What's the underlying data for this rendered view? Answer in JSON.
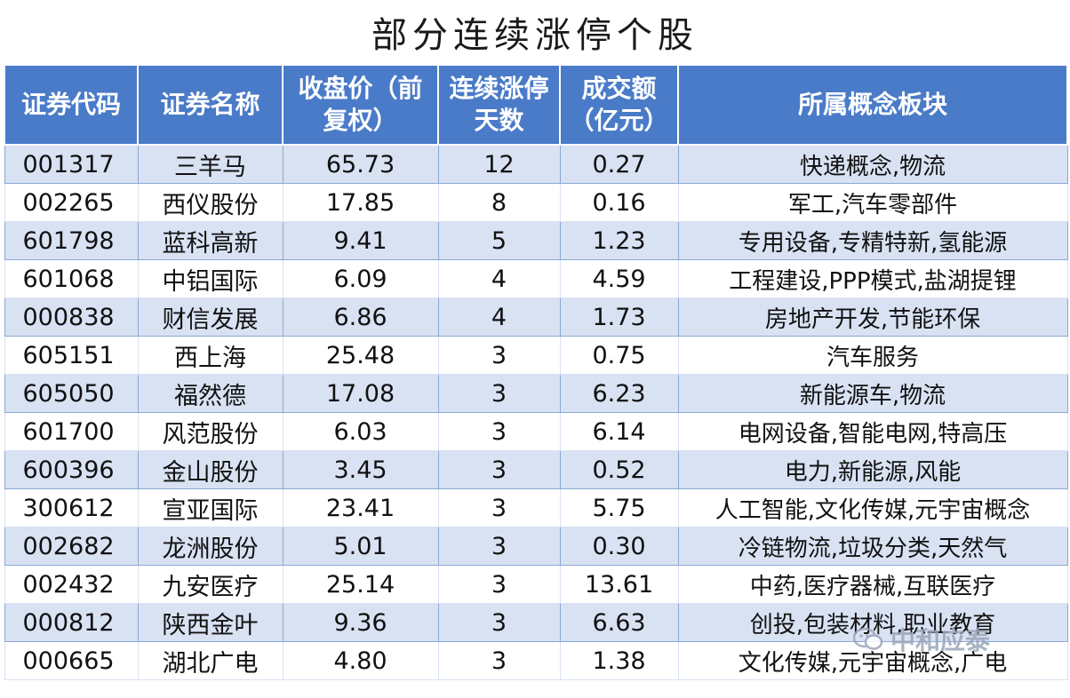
{
  "title": "部分连续涨停个股",
  "headers": [
    [
      "证券代码"
    ],
    [
      "证券名称"
    ],
    [
      "收盘价（前",
      "复权）"
    ],
    [
      "连续涨停",
      "天数"
    ],
    [
      "成交额",
      "（亿元）"
    ],
    [
      "所属概念板块"
    ]
  ],
  "rows": [
    [
      "001317",
      "三羊马",
      "65.73",
      "12",
      "0.27",
      "快递概念,物流"
    ],
    [
      "002265",
      "西仪股份",
      "17.85",
      "8",
      "0.16",
      "军工,汽车零部件"
    ],
    [
      "601798",
      "蓝科高新",
      "9.41",
      "5",
      "1.23",
      "专用设备,专精特新,氢能源"
    ],
    [
      "601068",
      "中铝国际",
      "6.09",
      "4",
      "4.59",
      "工程建设,PPP模式,盐湖提锂"
    ],
    [
      "000838",
      "财信发展",
      "6.86",
      "4",
      "1.73",
      "房地产开发,节能环保"
    ],
    [
      "605151",
      "西上海",
      "25.48",
      "3",
      "0.75",
      "汽车服务"
    ],
    [
      "605050",
      "福然德",
      "17.08",
      "3",
      "6.23",
      "新能源车,物流"
    ],
    [
      "601700",
      "风范股份",
      "6.03",
      "3",
      "6.14",
      "电网设备,智能电网,特高压"
    ],
    [
      "600396",
      "金山股份",
      "3.45",
      "3",
      "0.52",
      "电力,新能源,风能"
    ],
    [
      "300612",
      "宣亚国际",
      "23.41",
      "3",
      "5.75",
      "人工智能,文化传媒,元宇宙概念"
    ],
    [
      "002682",
      "龙洲股份",
      "5.01",
      "3",
      "0.30",
      "冷链物流,垃圾分类,天然气"
    ],
    [
      "002432",
      "九安医疗",
      "25.14",
      "3",
      "13.61",
      "中药,医疗器械,互联医疗"
    ],
    [
      "000812",
      "陕西金叶",
      "9.36",
      "3",
      "6.63",
      "创投,包装材料,职业教育"
    ],
    [
      "000665",
      "湖北广电",
      "4.80",
      "3",
      "1.38",
      "文化传媒,元宇宙概念,广电"
    ]
  ],
  "watermark": "中和应泰",
  "colors": {
    "header_bg": "#4a7bc8",
    "band_bg": "#d9e2f3"
  }
}
